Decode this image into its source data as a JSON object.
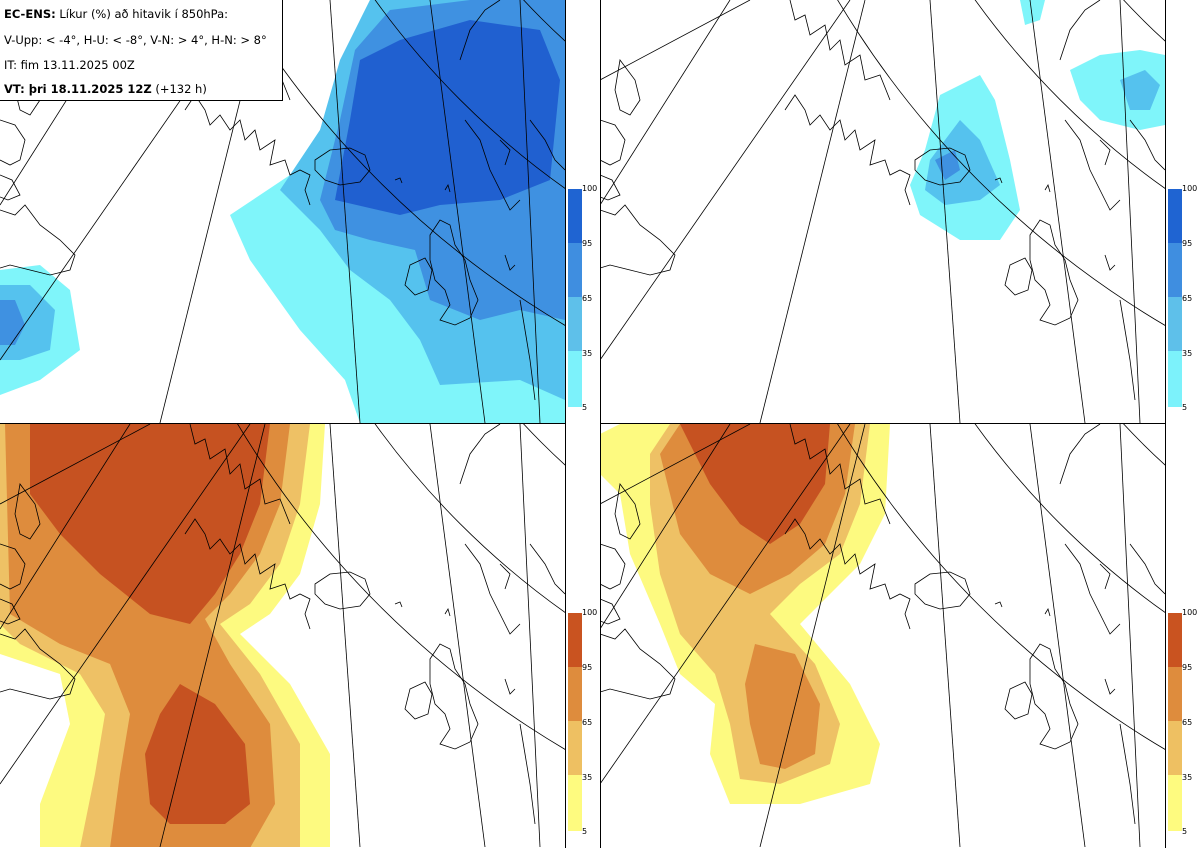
{
  "info": {
    "line1_bold": "EC-ENS:",
    "line1_rest": " Líkur (%) að hitavik í 850hPa:",
    "line2": "V-Upp: < -4°, H-U: < -8°, V-N: > 4°, H-N: > 8°",
    "line3": "IT: fim 13.11.2025 00Z",
    "line4_bold": "VT: þri 18.11.2025 12Z",
    "line4_rest": " (+132 h)"
  },
  "panels": [
    {
      "id": "upper-left",
      "meaning": "V-Upp",
      "palette": "blue"
    },
    {
      "id": "upper-right",
      "meaning": "H-U",
      "palette": "blue"
    },
    {
      "id": "lower-left",
      "meaning": "V-N",
      "palette": "orange"
    },
    {
      "id": "lower-right",
      "meaning": "H-N",
      "palette": "orange"
    }
  ],
  "colorbar": {
    "ticks": [
      "100",
      "95",
      "65",
      "35",
      "5"
    ],
    "levels": [
      5,
      35,
      65,
      95,
      100
    ],
    "blue_colors": [
      "#1f64d2",
      "#3f8ee0",
      "#5ec0ea",
      "#7cf2fb"
    ],
    "orange_colors": [
      "#c95320",
      "#de8c3d",
      "#eec062",
      "#fefb7f"
    ]
  },
  "colors": {
    "blue_light": "#7ff5fa",
    "blue_mid": "#55c2ee",
    "blue_dark": "#3f91e1",
    "blue_deep": "#2060d0",
    "orange_light": "#fdfa80",
    "orange_mid": "#eec165",
    "orange_dark": "#de8c3d",
    "orange_deep": "#c65221"
  }
}
